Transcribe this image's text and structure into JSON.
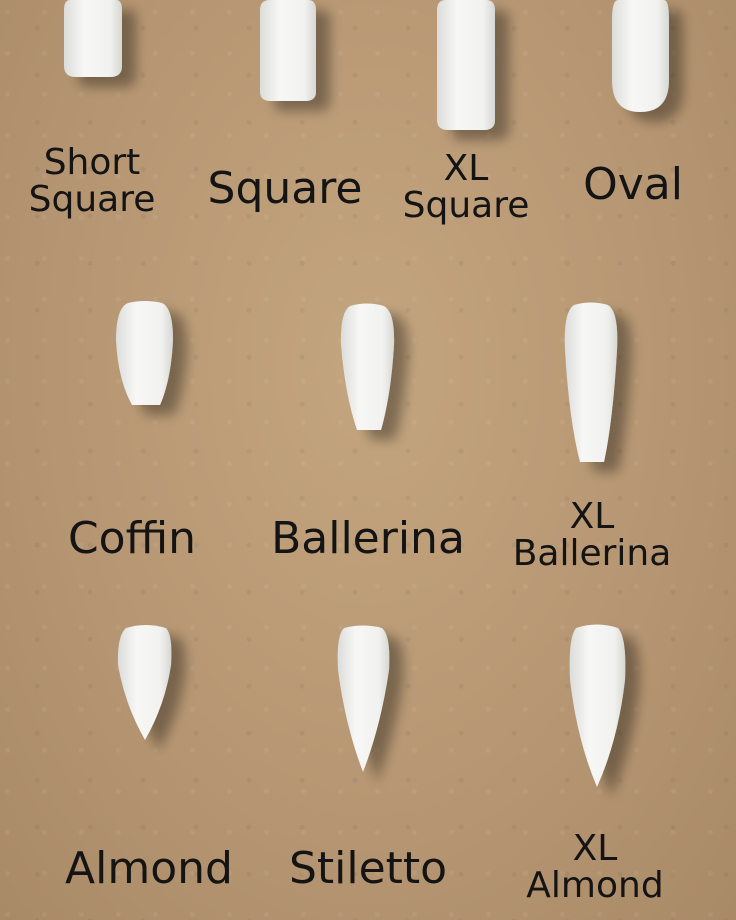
{
  "colors": {
    "board": "#b99a74",
    "nail": "#f4f4f2",
    "text": "#141414"
  },
  "shapes": [
    {
      "id": "short-square",
      "label": [
        "Short",
        "Square"
      ]
    },
    {
      "id": "square",
      "label": [
        "Square"
      ]
    },
    {
      "id": "xl-square",
      "label": [
        "XL",
        "Square"
      ]
    },
    {
      "id": "oval",
      "label": [
        "Oval"
      ]
    },
    {
      "id": "coffin",
      "label": [
        "Coffin"
      ]
    },
    {
      "id": "ballerina",
      "label": [
        "Ballerina"
      ]
    },
    {
      "id": "xl-ballerina",
      "label": [
        "XL",
        "Ballerina"
      ]
    },
    {
      "id": "almond",
      "label": [
        "Almond"
      ]
    },
    {
      "id": "stiletto",
      "label": [
        "Stiletto"
      ]
    },
    {
      "id": "xl-almond",
      "label": [
        "XL",
        "Almond"
      ]
    }
  ]
}
